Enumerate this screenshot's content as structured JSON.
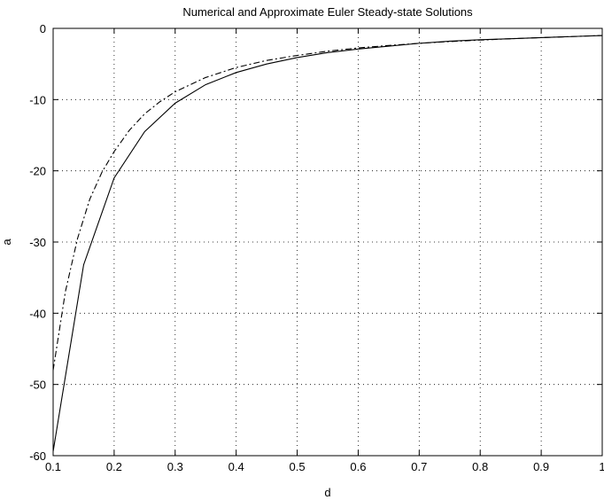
{
  "chart_data": {
    "type": "line",
    "title": "Numerical and Approximate Euler Steady-state Solutions",
    "xlabel": "d",
    "ylabel": "a",
    "xlim": [
      0.1,
      1.0
    ],
    "ylim": [
      -60,
      0
    ],
    "xticks": [
      0.1,
      0.2,
      0.3,
      0.4,
      0.5,
      0.6,
      0.7,
      0.8,
      0.9,
      1
    ],
    "xtick_labels": [
      "0.1",
      "0.2",
      "0.3",
      "0.4",
      "0.5",
      "0.6",
      "0.7",
      "0.8",
      "0.9",
      "1"
    ],
    "yticks": [
      0,
      -10,
      -20,
      -30,
      -40,
      -50,
      -60
    ],
    "ytick_labels": [
      "0",
      "-10",
      "-20",
      "-30",
      "-40",
      "-50",
      "-60"
    ],
    "grid": true,
    "legend": "none",
    "series": [
      {
        "style": "solid",
        "color": "#000000",
        "x": [
          0.1,
          0.15,
          0.2,
          0.25,
          0.3,
          0.35,
          0.4,
          0.45,
          0.5,
          0.55,
          0.6,
          0.65,
          0.7,
          0.75,
          0.8,
          0.85,
          0.9,
          0.95,
          1.0
        ],
        "y": [
          -59.4,
          -33.2,
          -21.0,
          -14.5,
          -10.5,
          -7.9,
          -6.2,
          -5.0,
          -4.1,
          -3.4,
          -2.9,
          -2.5,
          -2.1,
          -1.8,
          -1.6,
          -1.45,
          -1.3,
          -1.15,
          -1.0
        ]
      },
      {
        "style": "dashdot",
        "color": "#000000",
        "x": [
          0.1,
          0.12,
          0.14,
          0.16,
          0.18,
          0.2,
          0.225,
          0.25,
          0.275,
          0.3,
          0.35,
          0.4,
          0.45,
          0.5,
          0.55,
          0.6,
          0.65,
          0.7,
          0.75,
          0.8,
          0.85,
          0.9,
          0.95,
          1.0
        ],
        "y": [
          -48.0,
          -37.0,
          -29.5,
          -24.0,
          -20.2,
          -17.3,
          -14.3,
          -12.0,
          -10.3,
          -8.9,
          -6.9,
          -5.5,
          -4.5,
          -3.8,
          -3.2,
          -2.75,
          -2.4,
          -2.1,
          -1.85,
          -1.65,
          -1.45,
          -1.3,
          -1.15,
          -1.0
        ]
      }
    ]
  }
}
